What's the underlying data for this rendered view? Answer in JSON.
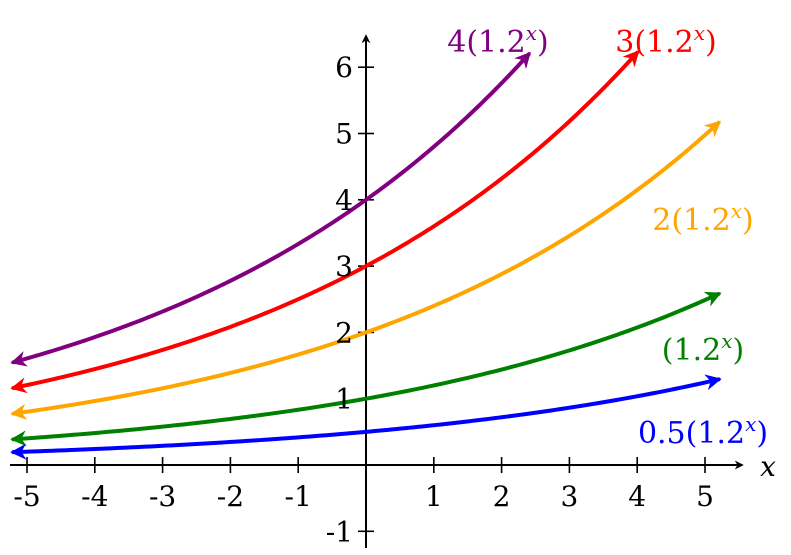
{
  "chart_data": {
    "type": "line",
    "xlabel": "x",
    "ylabel": "",
    "xlim": [
      -5.2,
      5.2
    ],
    "ylim": [
      -1.2,
      6.3
    ],
    "xticks": [
      -5,
      -4,
      -3,
      -2,
      -1,
      1,
      2,
      3,
      4,
      5
    ],
    "yticks": [
      -1,
      1,
      2,
      3,
      4,
      5,
      6
    ],
    "xtick_labels": [
      "-5",
      "-4",
      "-3",
      "-2",
      "-1",
      "1",
      "2",
      "3",
      "4",
      "5"
    ],
    "ytick_labels": [
      "-1",
      "1",
      "2",
      "3",
      "4",
      "5",
      "6"
    ],
    "grid": false,
    "series": [
      {
        "name": "4(1.2^x)",
        "coefficient": 4,
        "base": 1.2,
        "x_range": [
          -5.2,
          2.4
        ],
        "color": "#800080",
        "label": {
          "prefix": "4(1.2",
          "sup": "x",
          "suffix": ")"
        }
      },
      {
        "name": "3(1.2^x)",
        "coefficient": 3,
        "base": 1.2,
        "x_range": [
          -5.2,
          4.0
        ],
        "color": "#ff0000",
        "label": {
          "prefix": "3(1.2",
          "sup": "x",
          "suffix": ")"
        }
      },
      {
        "name": "2(1.2^x)",
        "coefficient": 2,
        "base": 1.2,
        "x_range": [
          -5.2,
          5.2
        ],
        "color": "#ffa500",
        "label": {
          "prefix": "2(1.2",
          "sup": "x",
          "suffix": ")"
        }
      },
      {
        "name": "(1.2^x)",
        "coefficient": 1,
        "base": 1.2,
        "x_range": [
          -5.2,
          5.2
        ],
        "color": "#008000",
        "label": {
          "prefix": "(1.2",
          "sup": "x",
          "suffix": ")"
        }
      },
      {
        "name": "0.5(1.2^x)",
        "coefficient": 0.5,
        "base": 1.2,
        "x_range": [
          -5.2,
          5.2
        ],
        "color": "#0000ff",
        "label": {
          "prefix": "0.5(1.2",
          "sup": "x",
          "suffix": ")"
        }
      }
    ]
  }
}
